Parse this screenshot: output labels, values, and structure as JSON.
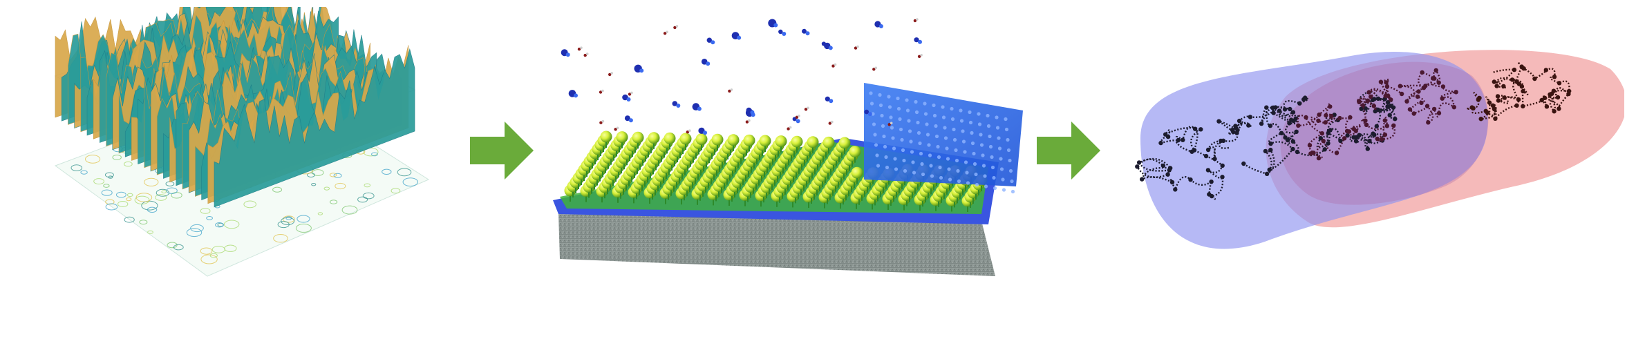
{
  "figure": {
    "panels": [
      {
        "id": "surface",
        "description_icon": "rough-surface-3d-plot-icon"
      },
      {
        "id": "deposition",
        "description_icon": "molecular-deposition-icon"
      },
      {
        "id": "polymer",
        "description_icon": "polymer-chain-icon"
      }
    ],
    "arrows": [
      {
        "color": "#6aab3a",
        "icon": "right-arrow-icon"
      },
      {
        "color": "#6aab3a",
        "icon": "right-arrow-icon"
      }
    ],
    "colors": {
      "arrow_green": "#6aab3a",
      "surface_teal": "#2a9c9a",
      "surface_gold": "#d9a84a",
      "substrate_blue": "#3a55e0",
      "plate_blue": "#2a6ae8",
      "sphere_yellow": "#d8f03a",
      "sphere_green": "#4ec43a",
      "concrete_gray": "#8a9592",
      "blob_blue": "#8f93f0",
      "blob_red": "#f1a3a3",
      "chain_dark": "#1c1c2e",
      "chain_brown": "#3a1410"
    }
  }
}
